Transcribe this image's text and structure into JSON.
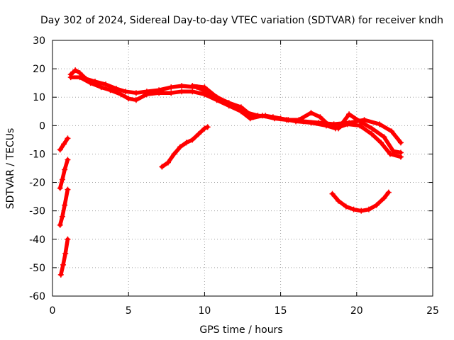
{
  "chart_data": {
    "type": "scatter",
    "title": "Day 302 of 2024, Sidereal Day-to-day VTEC variation (SDTVAR) for receiver kndh",
    "xlabel": "GPS time / hours",
    "ylabel": "SDTVAR / TECUs",
    "xlim": [
      0,
      25
    ],
    "ylim": [
      -60,
      30
    ],
    "xticks": [
      0,
      5,
      10,
      15,
      20,
      25
    ],
    "yticks": [
      -60,
      -50,
      -40,
      -30,
      -20,
      -10,
      0,
      10,
      20,
      30
    ],
    "grid": true,
    "series_color": "#ff0000",
    "series": [
      {
        "name": "arc-main-upper",
        "points": [
          [
            1.2,
            18
          ],
          [
            1.5,
            19.5
          ],
          [
            1.8,
            18.5
          ],
          [
            2.2,
            16.5
          ],
          [
            2.8,
            15.5
          ],
          [
            3.5,
            14.5
          ],
          [
            4.2,
            13
          ],
          [
            4.8,
            12
          ],
          [
            5.5,
            11.5
          ],
          [
            6.2,
            12
          ],
          [
            7,
            12.5
          ],
          [
            7.8,
            13.5
          ],
          [
            8.5,
            14
          ],
          [
            9.5,
            13.5
          ],
          [
            10.5,
            11
          ],
          [
            11.5,
            8
          ],
          [
            12.5,
            5
          ],
          [
            13.5,
            3.5
          ],
          [
            14.5,
            3
          ],
          [
            15.5,
            2
          ],
          [
            16.5,
            1.5
          ],
          [
            17.5,
            1
          ],
          [
            18.5,
            0.5
          ],
          [
            19.5,
            1
          ],
          [
            20.5,
            2
          ],
          [
            21.5,
            0.5
          ],
          [
            22.3,
            -2
          ],
          [
            22.9,
            -6
          ]
        ]
      },
      {
        "name": "arc-main-lower",
        "points": [
          [
            1.2,
            17
          ],
          [
            1.8,
            17
          ],
          [
            2.5,
            15
          ],
          [
            3.2,
            13.5
          ],
          [
            3.8,
            12.5
          ],
          [
            4.5,
            11
          ],
          [
            5,
            9.5
          ],
          [
            5.5,
            9
          ],
          [
            6.2,
            11
          ],
          [
            7,
            11.5
          ],
          [
            7.8,
            11.5
          ],
          [
            8.5,
            12
          ],
          [
            9.2,
            12
          ],
          [
            10,
            11
          ],
          [
            10.8,
            9
          ],
          [
            11.6,
            7
          ],
          [
            12.4,
            5
          ],
          [
            13,
            2.5
          ],
          [
            13.8,
            3.5
          ],
          [
            14.6,
            2.5
          ],
          [
            15.4,
            2
          ],
          [
            16.2,
            2
          ],
          [
            17,
            4.5
          ],
          [
            17.6,
            3
          ],
          [
            18.2,
            0
          ],
          [
            18.8,
            -1
          ],
          [
            19.5,
            4
          ],
          [
            20.2,
            1.5
          ],
          [
            21,
            -1
          ],
          [
            21.8,
            -4
          ],
          [
            22.4,
            -9
          ],
          [
            22.9,
            -9.5
          ]
        ]
      },
      {
        "name": "arc-main-third",
        "points": [
          [
            9.2,
            14
          ],
          [
            10,
            13.5
          ],
          [
            10.8,
            10
          ],
          [
            11.6,
            8
          ],
          [
            12.4,
            6.5
          ],
          [
            13.2,
            3
          ],
          [
            14,
            3.5
          ],
          [
            15,
            2.5
          ],
          [
            16,
            1.5
          ],
          [
            17,
            1
          ],
          [
            18,
            0
          ],
          [
            18.6,
            -1
          ],
          [
            19.4,
            0.5
          ],
          [
            20.2,
            0
          ],
          [
            21,
            -3
          ],
          [
            21.6,
            -6
          ],
          [
            22.2,
            -10
          ],
          [
            22.9,
            -11
          ]
        ]
      },
      {
        "name": "arc-rising",
        "points": [
          [
            7.2,
            -14.5
          ],
          [
            7.6,
            -13
          ],
          [
            8,
            -10
          ],
          [
            8.4,
            -7.5
          ],
          [
            8.8,
            -6
          ],
          [
            9.2,
            -5
          ],
          [
            9.6,
            -3
          ],
          [
            10,
            -1
          ],
          [
            10.2,
            -0.5
          ]
        ]
      },
      {
        "name": "arc-bowl",
        "points": [
          [
            18.4,
            -24
          ],
          [
            18.8,
            -26.5
          ],
          [
            19.3,
            -28.5
          ],
          [
            19.8,
            -29.5
          ],
          [
            20.3,
            -30
          ],
          [
            20.8,
            -29.5
          ],
          [
            21.3,
            -28
          ],
          [
            21.8,
            -25.5
          ],
          [
            22.1,
            -23.5
          ]
        ]
      },
      {
        "name": "arc-left-1",
        "points": [
          [
            0.5,
            -8.5
          ],
          [
            0.75,
            -6.5
          ],
          [
            1.0,
            -4.5
          ]
        ]
      },
      {
        "name": "arc-left-2",
        "points": [
          [
            0.5,
            -22
          ],
          [
            0.65,
            -19
          ],
          [
            0.8,
            -15.5
          ],
          [
            1.0,
            -12
          ]
        ]
      },
      {
        "name": "arc-left-3",
        "points": [
          [
            0.5,
            -35
          ],
          [
            0.65,
            -32
          ],
          [
            0.8,
            -28
          ],
          [
            1.0,
            -22.5
          ]
        ]
      },
      {
        "name": "arc-left-4",
        "points": [
          [
            0.55,
            -52.5
          ],
          [
            0.7,
            -49
          ],
          [
            0.85,
            -45
          ],
          [
            1.0,
            -40
          ]
        ]
      }
    ]
  }
}
